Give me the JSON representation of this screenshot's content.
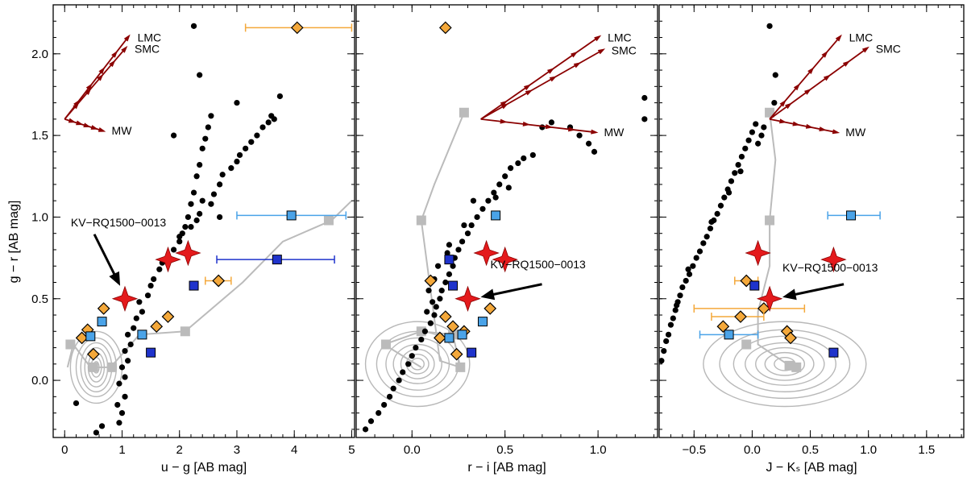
{
  "chart_data": {
    "type": "scatter",
    "ylabel": "g − r   [AB mag]",
    "ylim": [
      -0.35,
      2.3
    ],
    "yticks": [
      0.0,
      0.5,
      1.0,
      1.5,
      2.0
    ],
    "ytick_labels": [
      "0.0",
      "0.5",
      "1.0",
      "1.5",
      "2.0"
    ],
    "colors": {
      "stars": "#000000",
      "target": "#e41a1c",
      "comparison_orange": "#f4a83a",
      "comparison_lightblue": "#4aa3e8",
      "comparison_darkblue": "#1f33cc",
      "model_track": "#bbbbbb",
      "reddening": "#8b0000"
    },
    "panels": [
      {
        "xlabel": "u − g   [AB mag]",
        "xlim": [
          -0.2,
          5.05
        ],
        "xticks": [
          0,
          1,
          2,
          3,
          4,
          5
        ],
        "xtick_labels": [
          "0",
          "1",
          "2",
          "3",
          "4",
          "5"
        ],
        "reddening": {
          "origin": [
            0.0,
            1.6
          ],
          "vectors": [
            {
              "label": "LMC",
              "end": [
                1.1,
                2.1
              ]
            },
            {
              "label": "SMC",
              "end": [
                1.05,
                2.03
              ]
            },
            {
              "label": "MW",
              "end": [
                0.65,
                1.53
              ]
            }
          ]
        },
        "target_label": "KV−RQ1500−0013",
        "targets": [
          {
            "x": 1.05,
            "y": 0.5
          },
          {
            "x": 1.8,
            "y": 0.74
          },
          {
            "x": 2.15,
            "y": 0.78
          }
        ],
        "target_xerr": [
          {
            "x": 2.15,
            "y": 0.78,
            "lo": 1.75,
            "hi": 2.6
          }
        ],
        "orange": [
          {
            "x": 4.05,
            "y": 2.16,
            "xlo": 3.15,
            "xhi": 5.0
          },
          {
            "x": 2.68,
            "y": 0.61,
            "xlo": 2.45,
            "xhi": 2.9
          },
          {
            "x": 0.68,
            "y": 0.44
          },
          {
            "x": 0.4,
            "y": 0.31
          },
          {
            "x": 0.3,
            "y": 0.26
          },
          {
            "x": 0.5,
            "y": 0.16
          },
          {
            "x": 1.6,
            "y": 0.33
          },
          {
            "x": 1.8,
            "y": 0.39
          }
        ],
        "lightblue": [
          {
            "x": 3.95,
            "y": 1.01,
            "xlo": 3.0,
            "xhi": 4.9
          },
          {
            "x": 0.65,
            "y": 0.36
          },
          {
            "x": 0.45,
            "y": 0.27
          },
          {
            "x": 1.35,
            "y": 0.28
          }
        ],
        "darkblue": [
          {
            "x": 3.7,
            "y": 0.74,
            "xlo": 2.65,
            "xhi": 4.7
          },
          {
            "x": 2.25,
            "y": 0.58
          },
          {
            "x": 1.5,
            "y": 0.17
          }
        ],
        "stars": [
          [
            0.65,
            -0.28
          ],
          [
            0.95,
            -0.26
          ],
          [
            1.0,
            -0.2
          ],
          [
            0.92,
            -0.15
          ],
          [
            1.05,
            -0.1
          ],
          [
            0.95,
            -0.02
          ],
          [
            1.05,
            0.02
          ],
          [
            1.0,
            0.08
          ],
          [
            1.1,
            0.12
          ],
          [
            1.05,
            0.18
          ],
          [
            1.15,
            0.22
          ],
          [
            1.1,
            0.28
          ],
          [
            1.2,
            0.32
          ],
          [
            1.25,
            0.38
          ],
          [
            1.35,
            0.42
          ],
          [
            1.3,
            0.48
          ],
          [
            1.45,
            0.52
          ],
          [
            1.5,
            0.58
          ],
          [
            1.55,
            0.62
          ],
          [
            1.65,
            0.68
          ],
          [
            1.7,
            0.72
          ],
          [
            1.9,
            0.8
          ],
          [
            2.0,
            0.85
          ],
          [
            2.05,
            0.9
          ],
          [
            2.2,
            0.94
          ],
          [
            2.3,
            0.98
          ],
          [
            2.35,
            1.02
          ],
          [
            2.55,
            1.08
          ],
          [
            2.6,
            1.14
          ],
          [
            2.4,
            1.1
          ],
          [
            2.7,
            1.2
          ],
          [
            2.75,
            1.26
          ],
          [
            2.9,
            1.3
          ],
          [
            3.0,
            1.34
          ],
          [
            3.05,
            1.38
          ],
          [
            3.15,
            1.42
          ],
          [
            3.25,
            1.46
          ],
          [
            3.35,
            1.5
          ],
          [
            3.45,
            1.55
          ],
          [
            3.55,
            1.58
          ],
          [
            3.6,
            1.62
          ],
          [
            3.65,
            1.6
          ],
          [
            3.75,
            1.74
          ],
          [
            3.0,
            1.7
          ],
          [
            2.55,
            1.62
          ],
          [
            2.5,
            1.55
          ],
          [
            2.45,
            1.48
          ],
          [
            2.4,
            1.42
          ],
          [
            2.35,
            1.32
          ],
          [
            2.3,
            1.25
          ],
          [
            2.25,
            1.15
          ],
          [
            2.2,
            1.08
          ],
          [
            2.15,
            1.0
          ],
          [
            2.1,
            0.94
          ],
          [
            2.0,
            0.88
          ],
          [
            2.7,
            1.0
          ],
          [
            1.9,
            1.5
          ],
          [
            2.35,
            1.87
          ],
          [
            2.25,
            2.17
          ],
          [
            0.2,
            -0.14
          ],
          [
            0.55,
            -0.32
          ]
        ]
      },
      {
        "xlabel": "r − i   [AB mag]",
        "xlim": [
          -0.3,
          1.32
        ],
        "xticks": [
          0.0,
          0.5,
          1.0
        ],
        "xtick_labels": [
          "0.0",
          "0.5",
          "1.0"
        ],
        "reddening": {
          "origin": [
            0.37,
            1.6
          ],
          "vectors": [
            {
              "label": "LMC",
              "end": [
                1.0,
                2.1
              ]
            },
            {
              "label": "SMC",
              "end": [
                1.02,
                2.02
              ]
            },
            {
              "label": "MW",
              "end": [
                0.98,
                1.52
              ]
            }
          ]
        },
        "target_label": "KV−RQ1500−0013",
        "targets": [
          {
            "x": 0.3,
            "y": 0.5
          },
          {
            "x": 0.4,
            "y": 0.78
          },
          {
            "x": 0.5,
            "y": 0.74
          }
        ],
        "target_xerr": [],
        "orange": [
          {
            "x": 0.18,
            "y": 2.16
          },
          {
            "x": 0.1,
            "y": 0.61
          },
          {
            "x": 0.42,
            "y": 0.44
          },
          {
            "x": 0.18,
            "y": 0.39
          },
          {
            "x": 0.22,
            "y": 0.33
          },
          {
            "x": 0.28,
            "y": 0.3
          },
          {
            "x": 0.15,
            "y": 0.26
          },
          {
            "x": 0.24,
            "y": 0.16
          }
        ],
        "lightblue": [
          {
            "x": 0.45,
            "y": 1.01
          },
          {
            "x": 0.38,
            "y": 0.36
          },
          {
            "x": 0.27,
            "y": 0.28
          },
          {
            "x": 0.2,
            "y": 0.26
          }
        ],
        "darkblue": [
          {
            "x": 0.2,
            "y": 0.74
          },
          {
            "x": 0.22,
            "y": 0.58
          },
          {
            "x": 0.32,
            "y": 0.17
          }
        ],
        "stars": [
          [
            -0.25,
            -0.3
          ],
          [
            -0.22,
            -0.25
          ],
          [
            -0.18,
            -0.2
          ],
          [
            -0.15,
            -0.15
          ],
          [
            -0.12,
            -0.1
          ],
          [
            -0.1,
            -0.05
          ],
          [
            -0.07,
            0.0
          ],
          [
            -0.05,
            0.05
          ],
          [
            -0.02,
            0.1
          ],
          [
            0.0,
            0.15
          ],
          [
            0.02,
            0.2
          ],
          [
            0.05,
            0.25
          ],
          [
            0.07,
            0.3
          ],
          [
            0.1,
            0.35
          ],
          [
            0.12,
            0.4
          ],
          [
            0.13,
            0.45
          ],
          [
            0.15,
            0.5
          ],
          [
            0.16,
            0.55
          ],
          [
            0.18,
            0.6
          ],
          [
            0.2,
            0.65
          ],
          [
            0.22,
            0.7
          ],
          [
            0.23,
            0.75
          ],
          [
            0.25,
            0.8
          ],
          [
            0.27,
            0.85
          ],
          [
            0.3,
            0.9
          ],
          [
            0.32,
            0.95
          ],
          [
            0.35,
            1.0
          ],
          [
            0.38,
            1.05
          ],
          [
            0.41,
            1.1
          ],
          [
            0.44,
            1.15
          ],
          [
            0.47,
            1.2
          ],
          [
            0.5,
            1.25
          ],
          [
            0.53,
            1.3
          ],
          [
            0.57,
            1.33
          ],
          [
            0.6,
            1.36
          ],
          [
            0.65,
            1.38
          ],
          [
            0.09,
            0.55
          ],
          [
            0.12,
            0.62
          ],
          [
            0.14,
            0.7
          ],
          [
            0.11,
            0.48
          ],
          [
            0.08,
            0.42
          ],
          [
            0.19,
            0.78
          ],
          [
            0.2,
            0.83
          ],
          [
            0.28,
            0.95
          ],
          [
            0.33,
            1.1
          ],
          [
            0.45,
            1.12
          ],
          [
            0.52,
            1.18
          ],
          [
            0.85,
            1.55
          ],
          [
            0.9,
            1.5
          ],
          [
            0.95,
            1.45
          ],
          [
            0.98,
            1.4
          ],
          [
            1.25,
            1.73
          ],
          [
            1.25,
            1.6
          ],
          [
            0.75,
            1.58
          ],
          [
            0.7,
            1.55
          ]
        ]
      },
      {
        "xlabel": "J − K_S   [AB mag]",
        "xlim": [
          -0.8,
          1.82
        ],
        "xticks": [
          -0.5,
          0.0,
          0.5,
          1.0,
          1.5
        ],
        "xtick_labels": [
          "−0.5",
          "0.0",
          "0.5",
          "1.0",
          "1.5"
        ],
        "reddening": {
          "origin": [
            0.15,
            1.6
          ],
          "vectors": [
            {
              "label": "LMC",
              "end": [
                0.75,
                2.1
              ]
            },
            {
              "label": "SMC",
              "end": [
                0.98,
                2.03
              ]
            },
            {
              "label": "MW",
              "end": [
                0.72,
                1.52
              ]
            }
          ]
        },
        "target_label": "KV−RQ1500−0013",
        "targets": [
          {
            "x": 0.15,
            "y": 0.5
          },
          {
            "x": 0.05,
            "y": 0.78
          },
          {
            "x": 0.7,
            "y": 0.74
          }
        ],
        "target_xerr": [],
        "orange": [
          {
            "x": -0.05,
            "y": 0.61,
            "xlo": -0.15,
            "xhi": 0.05
          },
          {
            "x": 0.1,
            "y": 0.44,
            "xlo": -0.5,
            "xhi": 0.45
          },
          {
            "x": -0.1,
            "y": 0.39,
            "xlo": -0.35,
            "xhi": 0.1
          },
          {
            "x": -0.25,
            "y": 0.33
          },
          {
            "x": 0.3,
            "y": 0.3
          },
          {
            "x": 0.33,
            "y": 0.26
          }
        ],
        "lightblue": [
          {
            "x": 0.85,
            "y": 1.01,
            "xlo": 0.65,
            "xhi": 1.1
          },
          {
            "x": -0.2,
            "y": 0.28,
            "xlo": -0.45,
            "xhi": 0.05
          }
        ],
        "darkblue": [
          {
            "x": 0.02,
            "y": 0.58
          },
          {
            "x": 0.7,
            "y": 0.17
          }
        ],
        "stars": [
          [
            -0.78,
            0.12
          ],
          [
            -0.76,
            0.18
          ],
          [
            -0.74,
            0.24
          ],
          [
            -0.72,
            0.28
          ],
          [
            -0.7,
            0.34
          ],
          [
            -0.68,
            0.38
          ],
          [
            -0.66,
            0.43
          ],
          [
            -0.64,
            0.48
          ],
          [
            -0.62,
            0.52
          ],
          [
            -0.6,
            0.57
          ],
          [
            -0.57,
            0.61
          ],
          [
            -0.54,
            0.65
          ],
          [
            -0.51,
            0.7
          ],
          [
            -0.48,
            0.75
          ],
          [
            -0.45,
            0.79
          ],
          [
            -0.42,
            0.84
          ],
          [
            -0.39,
            0.88
          ],
          [
            -0.36,
            0.93
          ],
          [
            -0.33,
            0.98
          ],
          [
            -0.3,
            1.02
          ],
          [
            -0.27,
            1.07
          ],
          [
            -0.24,
            1.12
          ],
          [
            -0.21,
            1.17
          ],
          [
            -0.18,
            1.22
          ],
          [
            -0.15,
            1.27
          ],
          [
            -0.12,
            1.32
          ],
          [
            -0.09,
            1.37
          ],
          [
            -0.06,
            1.42
          ],
          [
            -0.03,
            1.47
          ],
          [
            0.0,
            1.52
          ],
          [
            0.03,
            1.57
          ],
          [
            0.05,
            1.45
          ],
          [
            0.08,
            1.5
          ],
          [
            0.1,
            1.55
          ],
          [
            -0.1,
            1.28
          ],
          [
            -0.2,
            1.15
          ],
          [
            -0.35,
            0.97
          ],
          [
            -0.55,
            0.68
          ],
          [
            0.15,
            2.17
          ],
          [
            0.2,
            1.87
          ],
          [
            0.19,
            1.7
          ],
          [
            -0.65,
            0.46
          ]
        ]
      }
    ]
  }
}
